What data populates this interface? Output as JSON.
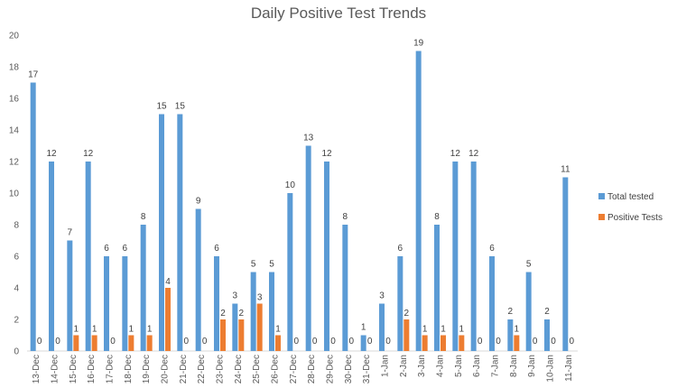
{
  "chart_data": {
    "type": "bar",
    "title": "Daily Positive Test Trends",
    "xlabel": "",
    "ylabel": "",
    "ylim": [
      0,
      20
    ],
    "yticks": [
      0,
      2,
      4,
      6,
      8,
      10,
      12,
      14,
      16,
      18,
      20
    ],
    "grid": false,
    "legend_position": "right",
    "categories": [
      "13-Dec",
      "14-Dec",
      "15-Dec",
      "16-Dec",
      "17-Dec",
      "18-Dec",
      "19-Dec",
      "20-Dec",
      "21-Dec",
      "22-Dec",
      "23-Dec",
      "24-Dec",
      "25-Dec",
      "26-Dec",
      "27-Dec",
      "28-Dec",
      "29-Dec",
      "30-Dec",
      "31-Dec",
      "1-Jan",
      "2-Jan",
      "3-Jan",
      "4-Jan",
      "5-Jan",
      "6-Jan",
      "7-Jan",
      "8-Jan",
      "9-Jan",
      "10-Jan",
      "11-Jan"
    ],
    "series": [
      {
        "name": "Total tested",
        "color": "#5B9BD5",
        "values": [
          17,
          12,
          7,
          12,
          6,
          6,
          8,
          15,
          15,
          9,
          6,
          3,
          5,
          5,
          10,
          13,
          12,
          8,
          1,
          3,
          6,
          19,
          8,
          12,
          12,
          6,
          2,
          5,
          2,
          11
        ],
        "data_labels": [
          17,
          12,
          7,
          12,
          6,
          6,
          8,
          15,
          15,
          9,
          6,
          3,
          5,
          5,
          10,
          13,
          12,
          8,
          1,
          3,
          6,
          19,
          8,
          12,
          12,
          6,
          2,
          5,
          2,
          11
        ]
      },
      {
        "name": "Positive Tests",
        "color": "#ED7D31",
        "values": [
          0,
          0,
          1,
          1,
          0,
          1,
          1,
          4,
          0,
          0,
          2,
          2,
          3,
          1,
          0,
          0,
          0,
          0,
          0,
          0,
          2,
          1,
          1,
          1,
          0,
          0,
          1,
          0,
          0,
          0
        ],
        "data_labels": [
          0,
          0,
          1,
          1,
          0,
          1,
          1,
          4,
          0,
          0,
          2,
          2,
          3,
          1,
          0,
          0,
          0,
          0,
          0,
          0,
          2,
          1,
          1,
          1,
          0,
          0,
          1,
          0,
          0,
          0
        ]
      }
    ]
  }
}
